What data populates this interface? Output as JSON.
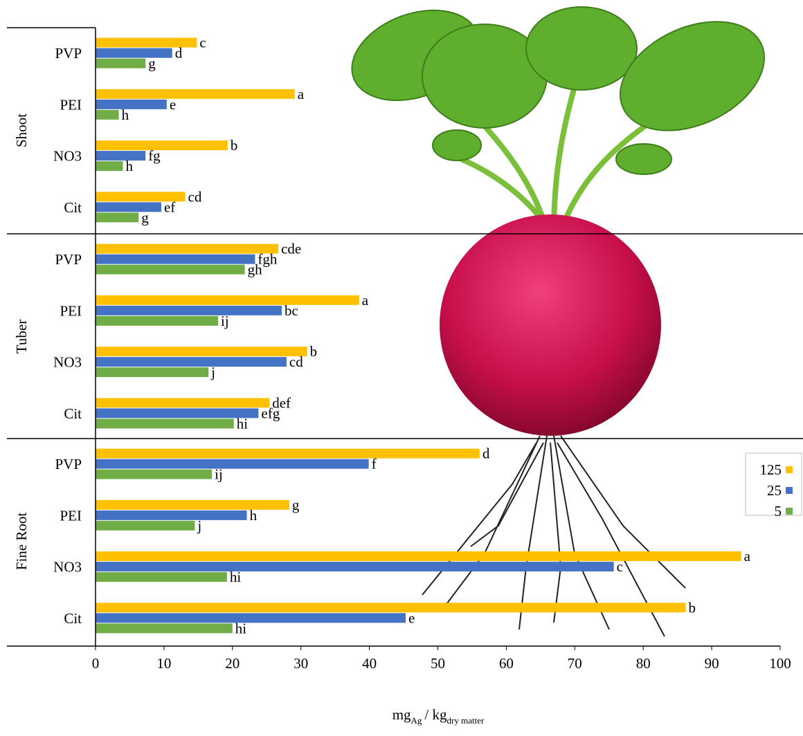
{
  "chart_data": {
    "type": "bar",
    "orientation": "horizontal",
    "series": [
      {
        "name": "125",
        "color": "#ffc000"
      },
      {
        "name": "25",
        "color": "#4472c4"
      },
      {
        "name": "5",
        "color": "#70ad47"
      }
    ],
    "panels": [
      {
        "label": "Shoot",
        "categories": [
          "PVP",
          "PEI",
          "NO3",
          "Cit"
        ],
        "series": [
          {
            "values": [
              14.8,
              29.1,
              19.3,
              13.1
            ],
            "letters": [
              "c",
              "a",
              "b",
              "cd"
            ]
          },
          {
            "values": [
              11.2,
              10.4,
              7.3,
              9.6
            ],
            "letters": [
              "d",
              "e",
              "fg",
              "ef"
            ]
          },
          {
            "values": [
              7.3,
              3.4,
              4.0,
              6.3
            ],
            "letters": [
              "g",
              "h",
              "h",
              "g"
            ]
          }
        ]
      },
      {
        "label": "Tuber",
        "categories": [
          "PVP",
          "PEI",
          "NO3",
          "Cit"
        ],
        "series": [
          {
            "values": [
              26.7,
              38.5,
              30.9,
              25.4
            ],
            "letters": [
              "cde",
              "a",
              "b",
              "def"
            ]
          },
          {
            "values": [
              23.3,
              27.2,
              27.9,
              23.8
            ],
            "letters": [
              "fgh",
              "bc",
              "cd",
              "efg"
            ]
          },
          {
            "values": [
              21.8,
              17.9,
              16.5,
              20.2
            ],
            "letters": [
              "gh",
              "ij",
              "j",
              "hi"
            ]
          }
        ]
      },
      {
        "label": "Fine Root",
        "categories": [
          "PVP",
          "PEI",
          "NO3",
          "Cit"
        ],
        "series": [
          {
            "values": [
              56.1,
              28.3,
              94.3,
              86.2
            ],
            "letters": [
              "d",
              "g",
              "a",
              "b"
            ]
          },
          {
            "values": [
              39.9,
              22.1,
              75.7,
              45.3
            ],
            "letters": [
              "f",
              "h",
              "c",
              "e"
            ]
          },
          {
            "values": [
              17.0,
              14.5,
              19.2,
              20.0
            ],
            "letters": [
              "ij",
              "j",
              "hi",
              "hi"
            ]
          }
        ]
      }
    ],
    "xlim": [
      0,
      100
    ],
    "xticks": [
      0,
      10,
      20,
      30,
      40,
      50,
      60,
      70,
      80,
      90,
      100
    ],
    "xlabel": [
      "mg",
      "Ag",
      "/ kg",
      "dry matter"
    ],
    "legend": "right"
  }
}
